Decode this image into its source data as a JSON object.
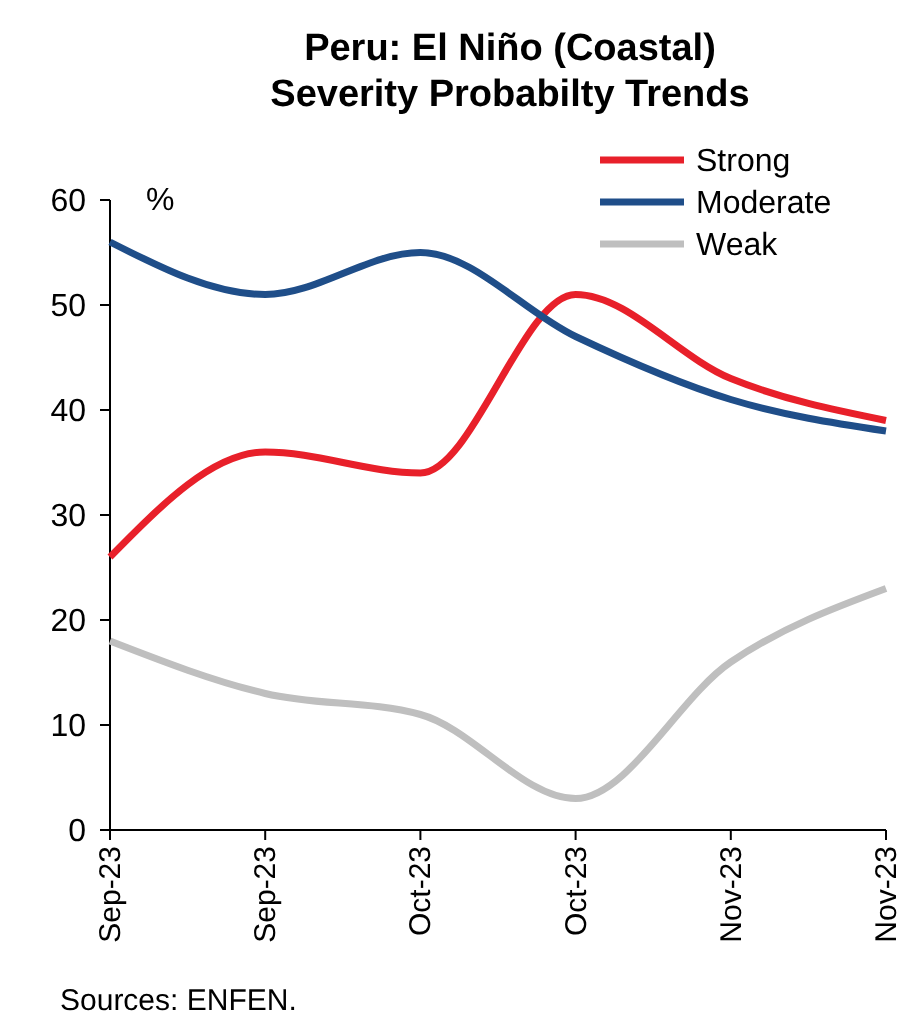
{
  "chart_data": {
    "type": "line",
    "title": "Peru: El Niño (Coastal) Severity Probabilty Trends",
    "ylabel": "%",
    "categories": [
      "Sep-23",
      "Sep-23",
      "Oct-23",
      "Oct-23",
      "Nov-23",
      "Nov-23"
    ],
    "series": [
      {
        "name": "Strong",
        "color": "#e8202a",
        "values": [
          26,
          36,
          34,
          51,
          43,
          39
        ]
      },
      {
        "name": "Moderate",
        "color": "#1f4e89",
        "values": [
          56,
          51,
          55,
          47,
          41,
          38
        ]
      },
      {
        "name": "Weak",
        "color": "#bfbfbf",
        "values": [
          18,
          13,
          11,
          3,
          16,
          23
        ]
      }
    ],
    "ylim": [
      0,
      60
    ],
    "yticks": [
      0,
      10,
      20,
      30,
      40,
      50,
      60
    ],
    "grid": false,
    "legend": "top right",
    "marker": "none",
    "line_style": "solid",
    "annotations": [
      "Sources: ENFEN."
    ]
  }
}
